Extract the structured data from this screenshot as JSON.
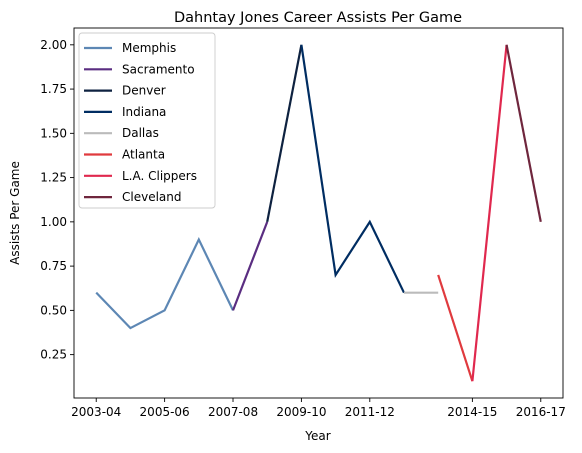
{
  "chart_data": {
    "type": "line",
    "title": "Dahntay Jones Career Assists Per Game",
    "xlabel": "Year",
    "ylabel": "Assists Per Game",
    "x_tick_labels": [
      "2003-04",
      "2005-06",
      "2007-08",
      "2009-10",
      "2011-12",
      "2014-15",
      "2016-17"
    ],
    "y_ticks": [
      "0.25",
      "0.50",
      "0.75",
      "1.00",
      "1.25",
      "1.50",
      "1.75",
      "2.00"
    ],
    "ylim": [
      0.005,
      2.095
    ],
    "grid": false,
    "legend_position": "upper-left",
    "series": [
      {
        "name": "Memphis",
        "color": "#5d87b4",
        "x": [
          "2003-04",
          "2004-05",
          "2005-06",
          "2006-07",
          "2007-08"
        ],
        "y": [
          0.6,
          0.4,
          0.5,
          0.9,
          0.5
        ]
      },
      {
        "name": "Sacramento",
        "color": "#5a2d81",
        "x": [
          "2007-08",
          "2008-09"
        ],
        "y": [
          0.5,
          1.0
        ]
      },
      {
        "name": "Denver",
        "color": "#0e2240",
        "x": [
          "2008-09",
          "2009-10"
        ],
        "y": [
          1.0,
          2.0
        ]
      },
      {
        "name": "Indiana",
        "color": "#002d62",
        "x": [
          "2009-10",
          "2010-11",
          "2011-12",
          "2012-13"
        ],
        "y": [
          2.0,
          0.7,
          1.0,
          0.6
        ]
      },
      {
        "name": "Dallas",
        "color": "#bbbbbb",
        "x": [
          "2012-13",
          "2013-14"
        ],
        "y": [
          0.6,
          0.6
        ]
      },
      {
        "name": "Atlanta",
        "color": "#e03a3e",
        "x": [
          "2013-14",
          "2014-15"
        ],
        "y": [
          0.7,
          0.1
        ]
      },
      {
        "name": "L.A. Clippers",
        "color": "#e0284e",
        "x": [
          "2014-15",
          "2015-16"
        ],
        "y": [
          0.1,
          2.0
        ]
      },
      {
        "name": "Cleveland",
        "color": "#6f263d",
        "x": [
          "2015-16",
          "2016-17"
        ],
        "y": [
          2.0,
          1.0
        ]
      }
    ]
  }
}
